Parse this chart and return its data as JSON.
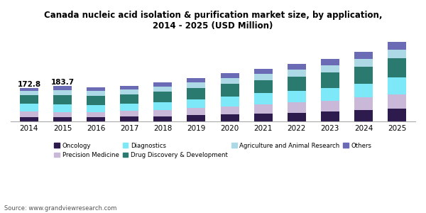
{
  "title": "Canada nucleic acid isolation & purification market size, by application,\n2014 - 2025 (USD Million)",
  "years": [
    2014,
    2015,
    2016,
    2017,
    2018,
    2019,
    2020,
    2021,
    2022,
    2023,
    2024,
    2025
  ],
  "categories": [
    "Oncology",
    "Precision Medicine",
    "Diagnostics",
    "Drug Discovery & Development",
    "Agriculture and Animal Research",
    "Others"
  ],
  "colors": [
    "#2d1b4e",
    "#c9b8d8",
    "#7de8f7",
    "#2b7a6f",
    "#add8e6",
    "#6b6bb5"
  ],
  "data": {
    "Oncology": [
      22,
      20,
      22,
      24,
      27,
      31,
      35,
      40,
      45,
      50,
      58,
      65
    ],
    "Precision Medicine": [
      30,
      28,
      27,
      30,
      33,
      37,
      42,
      47,
      52,
      57,
      65,
      75
    ],
    "Diagnostics": [
      38,
      38,
      35,
      36,
      40,
      46,
      53,
      58,
      62,
      65,
      72,
      88
    ],
    "Drug Discovery & Development": [
      45,
      50,
      48,
      49,
      53,
      58,
      63,
      67,
      72,
      80,
      88,
      100
    ],
    "Agriculture and Animal Research": [
      24,
      26,
      25,
      26,
      27,
      29,
      31,
      34,
      36,
      38,
      40,
      44
    ],
    "Others": [
      14,
      22,
      20,
      20,
      21,
      23,
      24,
      27,
      29,
      31,
      35,
      38
    ]
  },
  "totals": {
    "2014": "172.8",
    "2015": "183.7"
  },
  "source": "Source: www.grandviewresearch.com",
  "background_color": "#ffffff",
  "bar_width": 0.55
}
